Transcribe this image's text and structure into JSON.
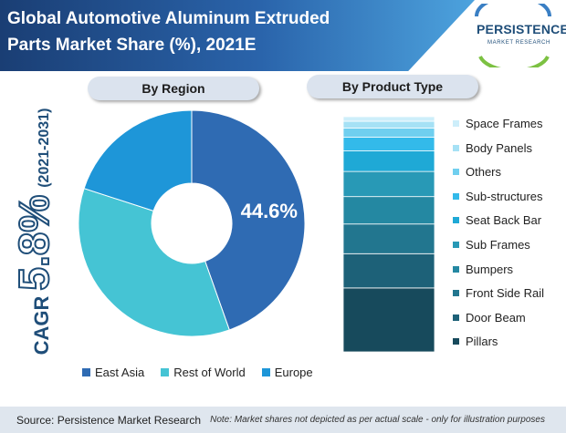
{
  "header": {
    "title_line1": "Global Automotive Aluminum Extruded",
    "title_line2": "Parts Market Share (%), 2021E"
  },
  "logo": {
    "name": "PERSISTENCE",
    "tagline": "MARKET RESEARCH"
  },
  "cagr": {
    "label": "CAGR",
    "value": "5.8%",
    "years": "(2021-2031)"
  },
  "panels": {
    "region_title": "By Region",
    "product_title": "By Product Type"
  },
  "footer": {
    "source": "Source: Persistence Market Research",
    "note": "Note: Market shares not depicted as per actual scale - only for illustration purposes"
  },
  "chart_data": [
    {
      "type": "pie",
      "title": "By Region",
      "donut": true,
      "categories": [
        "East Asia",
        "Rest of World",
        "Europe"
      ],
      "values": [
        44.6,
        35.4,
        20.0
      ],
      "colors": [
        "#2f6bb3",
        "#45c4d4",
        "#1e96d8"
      ],
      "data_labels": [
        {
          "category": "East Asia",
          "text": "44.6%"
        }
      ],
      "legend_position": "bottom"
    },
    {
      "type": "bar",
      "stacked": true,
      "title": "By Product Type",
      "categories": [
        "Pillars",
        "Door Beam",
        "Front Side Rail",
        "Bumpers",
        "Sub Frames",
        "Seat Back Bar",
        "Sub-structures",
        "Others",
        "Body Panels",
        "Space Frames"
      ],
      "values": [
        28,
        15,
        13,
        12,
        11,
        9,
        6,
        4,
        3,
        2
      ],
      "colors": [
        "#174a5c",
        "#1d6178",
        "#22768f",
        "#2488a2",
        "#2899b6",
        "#1fa9d6",
        "#33baea",
        "#70cfef",
        "#a6e1f5",
        "#cdeefa"
      ],
      "legend_order": [
        "Space Frames",
        "Body Panels",
        "Others",
        "Sub-structures",
        "Seat Back Bar",
        "Sub Frames",
        "Bumpers",
        "Front Side Rail",
        "Door Beam",
        "Pillars"
      ],
      "legend_position": "right"
    }
  ]
}
